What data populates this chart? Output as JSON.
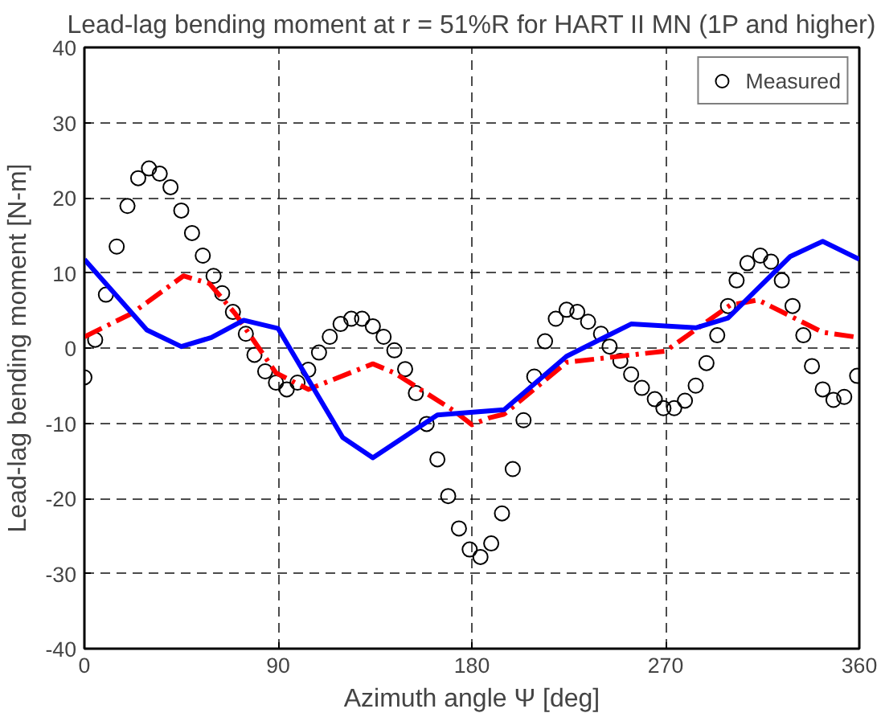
{
  "chart_data": {
    "type": "line",
    "title": "Lead-lag bending moment at r = 51%R for HART II MN (1P and higher)",
    "xlabel": "Azimuth angle Ψ [deg]",
    "ylabel": "Lead-lag bending moment [N-m]",
    "xlim": [
      0,
      360
    ],
    "xticks": [
      0,
      90,
      180,
      270,
      360
    ],
    "ylim": [
      -40,
      40
    ],
    "yticks": [
      -40,
      -30,
      -20,
      -10,
      0,
      10,
      20,
      30,
      40
    ],
    "grid": true,
    "legend": "top right",
    "series": [
      {
        "name": "Measured",
        "type": "scatter",
        "marker": "circle",
        "color": "#000000",
        "x": [
          0,
          5,
          10,
          15,
          20,
          25,
          30,
          35,
          40,
          45,
          50,
          55,
          60,
          64,
          69,
          75,
          79,
          84,
          89,
          94,
          99,
          104,
          109,
          114,
          119,
          124,
          129,
          134,
          139,
          144,
          149,
          154,
          159,
          164,
          169,
          174,
          179,
          184,
          189,
          194,
          199,
          204,
          209,
          214,
          219,
          224,
          229,
          234,
          240,
          244,
          249,
          254,
          259,
          265,
          269,
          274,
          279,
          284,
          289,
          294,
          299,
          303,
          308,
          314,
          319,
          324,
          329,
          334,
          338,
          343,
          348,
          353,
          359
        ],
        "values": [
          -3.9,
          1.1,
          7.1,
          13.5,
          18.9,
          22.6,
          23.9,
          23.2,
          21.4,
          18.3,
          15.3,
          12.3,
          9.6,
          7.3,
          4.8,
          1.9,
          -0.9,
          -3.1,
          -4.6,
          -5.5,
          -4.6,
          -2.9,
          -0.6,
          1.5,
          3.2,
          3.9,
          3.9,
          2.9,
          1.5,
          -0.3,
          -2.8,
          -6,
          -10.1,
          -14.8,
          -19.7,
          -24,
          -26.8,
          -27.8,
          -26,
          -22,
          -16.1,
          -9.6,
          -3.8,
          0.9,
          3.9,
          5.1,
          4.8,
          3.5,
          1.9,
          0.2,
          -1.7,
          -3.5,
          -5.3,
          -6.8,
          -8,
          -8,
          -7,
          -5,
          -2,
          1.7,
          5.6,
          9,
          11.3,
          12.3,
          11.5,
          9,
          5.6,
          1.7,
          -2.4,
          -5.5,
          -6.9,
          -6.5,
          -3.7
        ]
      },
      {
        "line_style": "dashdot",
        "color": "#ff0000",
        "x": [
          0,
          22,
          46,
          58,
          70,
          89,
          104,
          134,
          144,
          172,
          180,
          188,
          195,
          224,
          270,
          300,
          313,
          343,
          360
        ],
        "values": [
          1.5,
          4.6,
          9.6,
          8.6,
          4.6,
          -3.3,
          -5.5,
          -2.1,
          -3.3,
          -8.4,
          -10.2,
          -9.3,
          -8.8,
          -1.9,
          -0.4,
          5.7,
          6.4,
          2.1,
          1.4
        ]
      },
      {
        "line_style": "solid",
        "color": "#0000ff",
        "x": [
          0,
          29,
          45,
          59,
          74,
          90,
          120,
          134,
          164,
          195,
          224,
          254,
          284,
          299,
          328,
          343,
          360
        ],
        "values": [
          11.8,
          2.4,
          0.2,
          1.4,
          3.7,
          2.6,
          -11.9,
          -14.6,
          -8.9,
          -8.2,
          -1.1,
          3.2,
          2.7,
          4,
          12.2,
          14.2,
          11.8
        ]
      }
    ]
  }
}
